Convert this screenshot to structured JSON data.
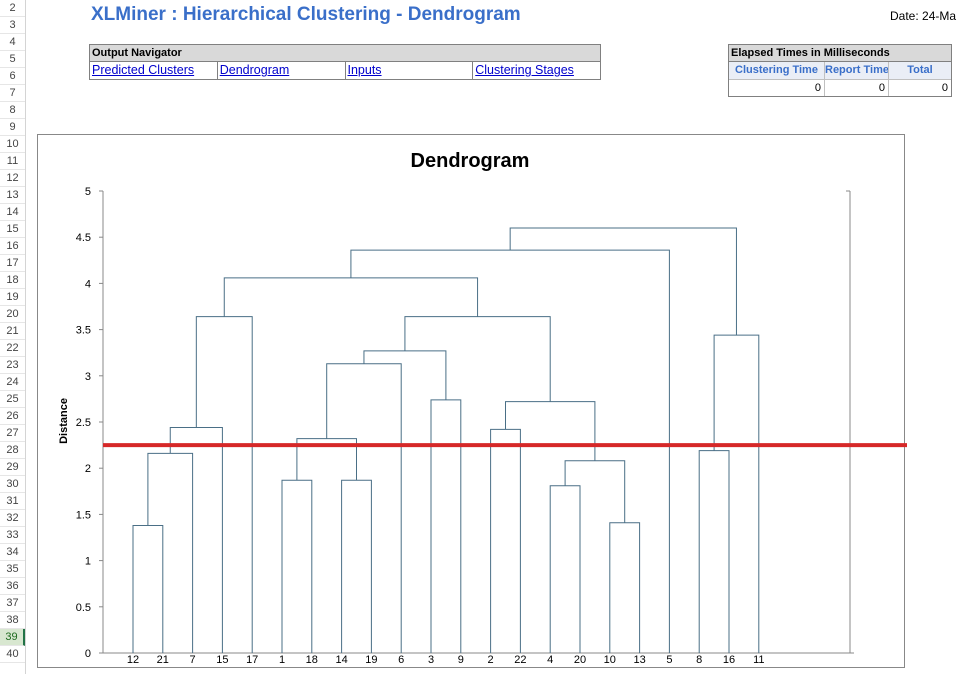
{
  "row_numbers": [
    "2",
    "3",
    "4",
    "5",
    "6",
    "7",
    "8",
    "9",
    "10",
    "11",
    "12",
    "13",
    "14",
    "15",
    "16",
    "17",
    "18",
    "19",
    "20",
    "21",
    "22",
    "23",
    "24",
    "25",
    "26",
    "27",
    "28",
    "29",
    "30",
    "31",
    "32",
    "33",
    "34",
    "35",
    "36",
    "37",
    "38",
    "39",
    "40"
  ],
  "selected_row": "39",
  "title": "XLMiner : Hierarchical Clustering - Dendrogram",
  "date_label": "Date: 24-Ma",
  "output_navigator": {
    "header": "Output Navigator",
    "links": [
      "Predicted Clusters",
      "Dendrogram",
      "Inputs",
      "Clustering Stages"
    ]
  },
  "elapsed_times": {
    "header": "Elapsed Times in Milliseconds",
    "columns": [
      "Clustering Time",
      "Report Time",
      "Total"
    ],
    "values": [
      "0",
      "0",
      "0"
    ]
  },
  "colors": {
    "link_lines": "#4a6f86",
    "cut_line": "#d62828",
    "title_blue": "#3a6fc9"
  },
  "chart_data": {
    "type": "dendrogram",
    "title": "Dendrogram",
    "ylabel": "Distance",
    "ylim": [
      0,
      5
    ],
    "yticks": [
      0,
      0.5,
      1,
      1.5,
      2,
      2.5,
      3,
      3.5,
      4,
      4.5,
      5
    ],
    "leaves": [
      "12",
      "21",
      "7",
      "15",
      "17",
      "1",
      "18",
      "14",
      "19",
      "6",
      "3",
      "9",
      "2",
      "22",
      "4",
      "20",
      "10",
      "13",
      "5",
      "8",
      "16",
      "11"
    ],
    "cut_height": 2.25,
    "merges": [
      {
        "left": "12",
        "right": "21",
        "height": 1.38
      },
      {
        "left": "12,21",
        "right": "7",
        "height": 2.16
      },
      {
        "left": "12,21,7",
        "right": "15",
        "height": 2.44
      },
      {
        "left": "12,21,7,15",
        "right": "17",
        "height": 3.64
      },
      {
        "left": "1",
        "right": "18",
        "height": 1.87
      },
      {
        "left": "14",
        "right": "19",
        "height": 1.87
      },
      {
        "left": "1,18",
        "right": "14,19",
        "height": 2.32
      },
      {
        "left": "1,18,14,19",
        "right": "6",
        "height": 3.13
      },
      {
        "left": "3",
        "right": "9",
        "height": 2.74
      },
      {
        "left": "1,18,14,19,6",
        "right": "3,9",
        "height": 3.27
      },
      {
        "left": "10",
        "right": "13",
        "height": 1.41
      },
      {
        "left": "4",
        "right": "20",
        "height": 1.81
      },
      {
        "left": "4,20",
        "right": "10,13",
        "height": 2.08
      },
      {
        "left": "2",
        "right": "22",
        "height": 2.42
      },
      {
        "left": "2,22",
        "right": "4,20,10,13",
        "height": 2.72
      },
      {
        "left": "1,18,14,19,6,3,9",
        "right": "2,22,4,20,10,13",
        "height": 3.64
      },
      {
        "left": "12,21,7,15,17",
        "right": "1,18,14,19,6,3,9,2,22,4,20,10,13",
        "height": 4.06
      },
      {
        "left": "12,21,7,15,17,1,18,14,19,6,3,9,2,22,4,20,10,13",
        "right": "5",
        "height": 4.36
      },
      {
        "left": "8",
        "right": "16",
        "height": 2.19
      },
      {
        "left": "8,16",
        "right": "11",
        "height": 3.44
      },
      {
        "left": "12,21,7,15,17,1,18,14,19,6,3,9,2,22,4,20,10,13,5",
        "right": "8,16,11",
        "height": 4.6
      }
    ]
  }
}
